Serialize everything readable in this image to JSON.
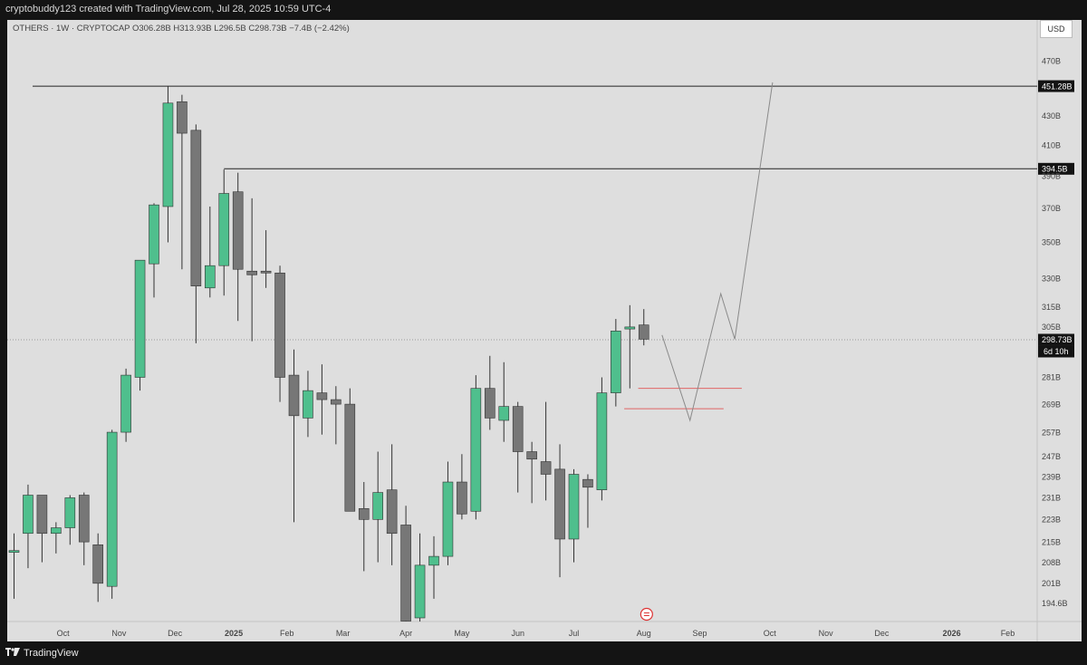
{
  "header": {
    "attribution": "cryptobuddy123 created with TradingView.com, Jul 28, 2025 10:59 UTC-4"
  },
  "legend": {
    "text": "OTHERS · 1W · CRYPTOCAP   O306.28B  H313.93B  L296.5B  C298.73B  −7.4B (−2.42%)"
  },
  "currency": "USD",
  "footer": {
    "brand": "TradingView"
  },
  "colors": {
    "up": "#4fbf8d",
    "down": "#777777",
    "background": "#dedede",
    "bar": "#141414",
    "redline": "#e06666"
  },
  "chart_data": {
    "type": "candlestick",
    "symbol": "OTHERS",
    "interval": "1W",
    "exchange": "CRYPTOCAP",
    "ohlc": {
      "open": "306.28B",
      "high": "313.93B",
      "low": "296.5B",
      "close": "298.73B",
      "change": "−7.4B (−2.42%)"
    },
    "y_ticks": [
      470,
      451.28,
      430,
      410,
      394.5,
      390,
      370,
      350,
      330,
      315,
      305,
      298.73,
      281,
      269,
      257,
      247,
      239,
      231,
      223,
      215,
      208,
      201,
      194.6
    ],
    "y_tick_labels": [
      "470B",
      "451.28B",
      "430B",
      "410B",
      "394.5B",
      "390B",
      "370B",
      "350B",
      "330B",
      "315B",
      "305B",
      "298.73B",
      "281B",
      "269B",
      "257B",
      "247B",
      "239B",
      "231B",
      "223B",
      "215B",
      "208B",
      "201B",
      "194.6B"
    ],
    "highlight_labels": {
      "451.28B": "#141414",
      "394.5B": "#141414",
      "298.73B": "#141414"
    },
    "countdown": "6d 10h",
    "x_labels": [
      "Oct",
      "Nov",
      "Dec",
      "2025",
      "Feb",
      "Mar",
      "Apr",
      "May",
      "Jun",
      "Jul",
      "Aug",
      "Sep",
      "Oct",
      "Nov",
      "Dec",
      "2026",
      "Feb"
    ],
    "x_label_week_index": [
      3.5,
      7.5,
      11.5,
      15.7,
      19.5,
      23.5,
      28.0,
      32.0,
      36.0,
      40.0,
      45.0,
      49.0,
      54.0,
      58.0,
      62.0,
      67.0,
      71.0
    ],
    "candles": [
      {
        "o": 212,
        "h": 218,
        "l": 196,
        "c": 212
      },
      {
        "o": 218,
        "h": 236,
        "l": 206,
        "c": 232
      },
      {
        "o": 232,
        "h": 232,
        "l": 208,
        "c": 218
      },
      {
        "o": 218,
        "h": 222,
        "l": 211,
        "c": 220
      },
      {
        "o": 220,
        "h": 232,
        "l": 214,
        "c": 231
      },
      {
        "o": 232,
        "h": 233,
        "l": 207,
        "c": 215
      },
      {
        "o": 214,
        "h": 218,
        "l": 195,
        "c": 201
      },
      {
        "o": 200,
        "h": 258,
        "l": 196,
        "c": 257
      },
      {
        "o": 257,
        "h": 285,
        "l": 253,
        "c": 282
      },
      {
        "o": 281,
        "h": 339,
        "l": 275,
        "c": 340
      },
      {
        "o": 338,
        "h": 373,
        "l": 320,
        "c": 372
      },
      {
        "o": 371,
        "h": 451,
        "l": 350,
        "c": 439
      },
      {
        "o": 440,
        "h": 445,
        "l": 335,
        "c": 418
      },
      {
        "o": 420,
        "h": 424,
        "l": 297,
        "c": 326
      },
      {
        "o": 325,
        "h": 371,
        "l": 320,
        "c": 337
      },
      {
        "o": 337,
        "h": 394,
        "l": 321,
        "c": 379
      },
      {
        "o": 380,
        "h": 392,
        "l": 308,
        "c": 335
      },
      {
        "o": 334,
        "h": 376,
        "l": 298,
        "c": 332
      },
      {
        "o": 334,
        "h": 357,
        "l": 325,
        "c": 333
      },
      {
        "o": 333,
        "h": 337,
        "l": 270,
        "c": 281
      },
      {
        "o": 282,
        "h": 294,
        "l": 222,
        "c": 264
      },
      {
        "o": 263,
        "h": 284,
        "l": 255,
        "c": 275
      },
      {
        "o": 274,
        "h": 287,
        "l": 256,
        "c": 271
      },
      {
        "o": 271,
        "h": 277,
        "l": 252,
        "c": 269
      },
      {
        "o": 269,
        "h": 276,
        "l": 228,
        "c": 226
      },
      {
        "o": 227,
        "h": 237,
        "l": 205,
        "c": 223
      },
      {
        "o": 223,
        "h": 249,
        "l": 208,
        "c": 233
      },
      {
        "o": 234,
        "h": 252,
        "l": 207,
        "c": 218
      },
      {
        "o": 221,
        "h": 228,
        "l": 185,
        "c": 189
      },
      {
        "o": 190,
        "h": 218,
        "l": 176,
        "c": 207
      },
      {
        "o": 207,
        "h": 217,
        "l": 196,
        "c": 210
      },
      {
        "o": 210,
        "h": 245,
        "l": 207,
        "c": 237
      },
      {
        "o": 237,
        "h": 248,
        "l": 223,
        "c": 225
      },
      {
        "o": 226,
        "h": 282,
        "l": 223,
        "c": 276
      },
      {
        "o": 276,
        "h": 291,
        "l": 258,
        "c": 263
      },
      {
        "o": 262,
        "h": 288,
        "l": 253,
        "c": 268
      },
      {
        "o": 268,
        "h": 270,
        "l": 233,
        "c": 249
      },
      {
        "o": 249,
        "h": 253,
        "l": 229,
        "c": 246
      },
      {
        "o": 245,
        "h": 270,
        "l": 230,
        "c": 240
      },
      {
        "o": 242,
        "h": 252,
        "l": 203,
        "c": 216
      },
      {
        "o": 216,
        "h": 242,
        "l": 208,
        "c": 240
      },
      {
        "o": 238,
        "h": 240,
        "l": 220,
        "c": 235
      },
      {
        "o": 234,
        "h": 281,
        "l": 230,
        "c": 274
      },
      {
        "o": 274,
        "h": 309,
        "l": 268,
        "c": 303
      },
      {
        "o": 304,
        "h": 316,
        "l": 276,
        "c": 305
      },
      {
        "o": 306,
        "h": 314,
        "l": 296,
        "c": 299
      }
    ],
    "levels": [
      {
        "value": 451.28,
        "label": "451.28B"
      },
      {
        "value": 394.5,
        "label": "394.5B"
      }
    ],
    "red_lines": [
      {
        "value": 276,
        "from_week": 44.6,
        "to_week": 52.0
      },
      {
        "value": 267,
        "from_week": 43.6,
        "to_week": 50.7
      }
    ],
    "projection": [
      {
        "week": 46.3,
        "value": 301
      },
      {
        "week": 48.3,
        "value": 262
      },
      {
        "week": 50.5,
        "value": 322
      },
      {
        "week": 51.5,
        "value": 299
      },
      {
        "week": 54.2,
        "value": 454
      }
    ]
  }
}
